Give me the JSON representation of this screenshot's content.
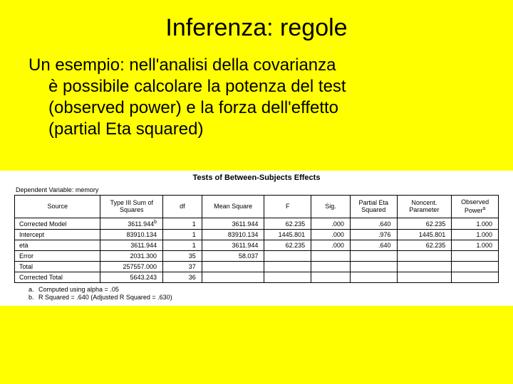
{
  "title": "Inferenza: regole",
  "body": {
    "line1": "Un esempio: nell'analisi della covarianza",
    "line2": "è possibile calcolare la potenza del test",
    "line3": "(observed power) e la forza dell'effetto",
    "line4": "(partial Eta squared)"
  },
  "table": {
    "title": "Tests of Between-Subjects Effects",
    "dep_var": "Dependent Variable: memory",
    "headers": {
      "source": "Source",
      "ss": "Type III Sum of Squares",
      "df": "df",
      "ms": "Mean Square",
      "f": "F",
      "sig": "Sig.",
      "eta": "Partial Eta Squared",
      "ncp": "Noncent. Parameter",
      "pow": "Observed Power"
    },
    "sup_a": "a",
    "sup_b": "b",
    "rows": [
      {
        "src": "Corrected Model",
        "ss": "3611.944",
        "df": "1",
        "ms": "3611.944",
        "f": "62.235",
        "sig": ".000",
        "eta": ".640",
        "ncp": "62.235",
        "pow": "1.000"
      },
      {
        "src": "Intercept",
        "ss": "83910.134",
        "df": "1",
        "ms": "83910.134",
        "f": "1445.801",
        "sig": ".000",
        "eta": ".976",
        "ncp": "1445.801",
        "pow": "1.000"
      },
      {
        "src": "età",
        "ss": "3611.944",
        "df": "1",
        "ms": "3611.944",
        "f": "62.235",
        "sig": ".000",
        "eta": ".640",
        "ncp": "62.235",
        "pow": "1.000"
      },
      {
        "src": "Error",
        "ss": "2031.300",
        "df": "35",
        "ms": "58.037",
        "f": "",
        "sig": "",
        "eta": "",
        "ncp": "",
        "pow": ""
      },
      {
        "src": "Total",
        "ss": "257557.000",
        "df": "37",
        "ms": "",
        "f": "",
        "sig": "",
        "eta": "",
        "ncp": "",
        "pow": ""
      },
      {
        "src": "Corrected Total",
        "ss": "5643.243",
        "df": "36",
        "ms": "",
        "f": "",
        "sig": "",
        "eta": "",
        "ncp": "",
        "pow": ""
      }
    ],
    "footnote_a": "Computed using alpha = .05",
    "footnote_b": "R Squared = .640 (Adjusted R Squared = .630)",
    "mark_a": "a.",
    "mark_b": "b."
  },
  "style": {
    "bg_color": "#ffff00",
    "table_bg": "#ffffff",
    "text_color": "#000000",
    "border_color": "#000000",
    "title_fontsize": 34,
    "body_fontsize": 24,
    "table_title_fontsize": 11,
    "table_fontsize": 9,
    "footnote_fontsize": 9
  }
}
